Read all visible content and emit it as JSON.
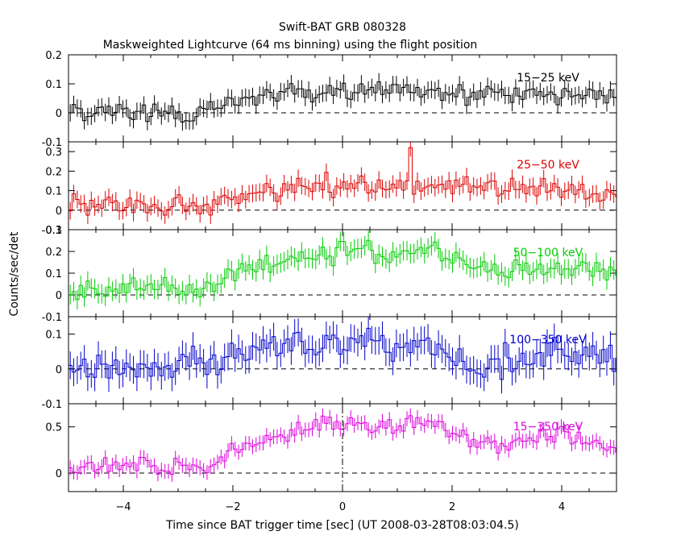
{
  "chart_data": {
    "type": "line",
    "title": "Swift-BAT GRB 080328",
    "subtitle": "Maskweighted Lightcurve (64 ms binning) using the flight position",
    "xlabel": "Time since BAT trigger time [sec] (UT 2008-03-28T08:03:04.5)",
    "ylabel": "Counts/sec/det",
    "xlim": [
      -5,
      5
    ],
    "xticks": [
      -4,
      -2,
      0,
      2,
      4
    ],
    "trigger_marker_x": 0,
    "bin_width": 0.064,
    "panels": [
      {
        "label": "15−25 keV",
        "color": "#000000",
        "ylim": [
          -0.1,
          0.2
        ],
        "yticks": [
          -0.1,
          0,
          0.1,
          0.2
        ],
        "trend": [
          [
            -5,
            0.015
          ],
          [
            -4.5,
            0.005
          ],
          [
            -4,
            0.005
          ],
          [
            -3.5,
            0.0
          ],
          [
            -3,
            -0.005
          ],
          [
            -2.5,
            0.0
          ],
          [
            -2,
            0.05
          ],
          [
            -1,
            0.07
          ],
          [
            0,
            0.08
          ],
          [
            1,
            0.08
          ],
          [
            2,
            0.07
          ],
          [
            3,
            0.06
          ],
          [
            4,
            0.07
          ],
          [
            5,
            0.05
          ]
        ],
        "noise": 0.025,
        "error": 0.03
      },
      {
        "label": "25−50 keV",
        "color": "#dd0000",
        "ylim": [
          -0.1,
          0.35
        ],
        "yticks": [
          -0.1,
          0,
          0.1,
          0.2,
          0.3
        ],
        "trend": [
          [
            -5,
            0.03
          ],
          [
            -4,
            0.02
          ],
          [
            -3,
            0.03
          ],
          [
            -2.5,
            0.02
          ],
          [
            -2,
            0.07
          ],
          [
            -1,
            0.1
          ],
          [
            0,
            0.14
          ],
          [
            1,
            0.13
          ],
          [
            2,
            0.12
          ],
          [
            3,
            0.11
          ],
          [
            4,
            0.12
          ],
          [
            5,
            0.07
          ]
        ],
        "noise": 0.035,
        "error": 0.045,
        "spikes": [
          [
            1.27,
            0.32
          ]
        ]
      },
      {
        "label": "50−100 keV",
        "color": "#00cc00",
        "ylim": [
          -0.1,
          0.3
        ],
        "yticks": [
          -0.1,
          0,
          0.1,
          0.2,
          0.3
        ],
        "trend": [
          [
            -5,
            0.02
          ],
          [
            -4,
            0.04
          ],
          [
            -3,
            0.03
          ],
          [
            -2.5,
            0.03
          ],
          [
            -2,
            0.1
          ],
          [
            -1,
            0.16
          ],
          [
            0,
            0.21
          ],
          [
            1,
            0.19
          ],
          [
            1.6,
            0.2
          ],
          [
            2.5,
            0.11
          ],
          [
            3,
            0.1
          ],
          [
            4,
            0.15
          ],
          [
            5,
            0.1
          ]
        ],
        "noise": 0.035,
        "error": 0.045
      },
      {
        "label": "100−350 keV",
        "color": "#0000cc",
        "ylim": [
          -0.1,
          0.15
        ],
        "yticks": [
          -0.1,
          0,
          0.1
        ],
        "trend": [
          [
            -5,
            0.0
          ],
          [
            -4,
            0.01
          ],
          [
            -3,
            0.0
          ],
          [
            -2,
            0.03
          ],
          [
            -1,
            0.07
          ],
          [
            0,
            0.07
          ],
          [
            1,
            0.06
          ],
          [
            1.6,
            0.07
          ],
          [
            2.5,
            0.0
          ],
          [
            3,
            0.02
          ],
          [
            4,
            0.04
          ],
          [
            5,
            0.03
          ]
        ],
        "noise": 0.03,
        "error": 0.04
      },
      {
        "label": "15−350 keV",
        "color": "#dd00dd",
        "ylim": [
          -0.2,
          0.75
        ],
        "yticks": [
          0,
          0.5
        ],
        "trend": [
          [
            -5,
            0.08
          ],
          [
            -4,
            0.08
          ],
          [
            -3,
            0.05
          ],
          [
            -2.5,
            0.05
          ],
          [
            -2,
            0.25
          ],
          [
            -1,
            0.42
          ],
          [
            0,
            0.55
          ],
          [
            1,
            0.52
          ],
          [
            1.6,
            0.55
          ],
          [
            2.5,
            0.3
          ],
          [
            3,
            0.3
          ],
          [
            4,
            0.45
          ],
          [
            5,
            0.25
          ]
        ],
        "noise": 0.07,
        "error": 0.08
      }
    ]
  }
}
